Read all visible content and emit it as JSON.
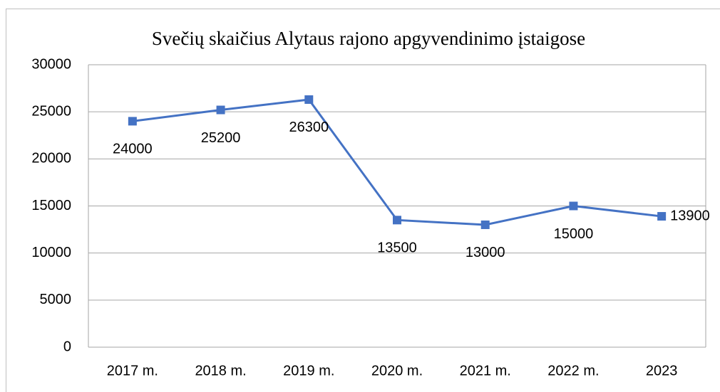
{
  "chart_data": {
    "type": "line",
    "title": "Svečių skaičius Alytaus rajono apgyvendinimo įstaigose",
    "categories": [
      "2017 m.",
      "2018 m.",
      "2019 m.",
      "2020 m.",
      "2021 m.",
      "2022 m.",
      "2023"
    ],
    "series": [
      {
        "name": "Svečių skaičius",
        "color": "#4472c4",
        "values": [
          24000,
          25200,
          26300,
          13500,
          13000,
          15000,
          13900
        ]
      }
    ],
    "ylim": [
      0,
      30000
    ],
    "yticks": [
      0,
      5000,
      10000,
      15000,
      20000,
      25000,
      30000
    ],
    "grid": true
  }
}
